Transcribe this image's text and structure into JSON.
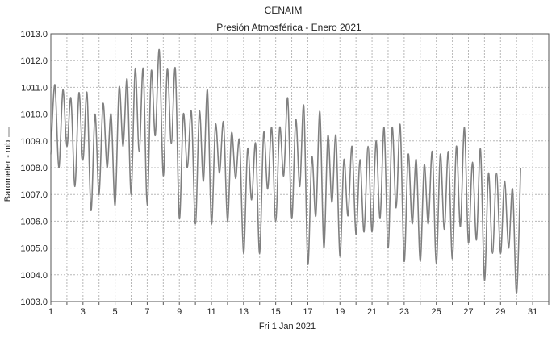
{
  "chart_data": {
    "type": "line",
    "title": "CENAIM",
    "subtitle": "Presión Atmosférica - Enero 2021",
    "xlabel": "Fri 1 Jan 2021",
    "ylabel": "Barometer - mb",
    "ylim": [
      1003.0,
      1013.0
    ],
    "xlim": [
      1,
      32
    ],
    "grid": true,
    "y_ticks": [
      "1003.0",
      "1004.0",
      "1005.0",
      "1006.0",
      "1007.0",
      "1008.0",
      "1009.0",
      "1010.0",
      "1011.0",
      "1012.0",
      "1013.0"
    ],
    "x_ticks": [
      "1",
      "3",
      "5",
      "7",
      "9",
      "11",
      "13",
      "15",
      "17",
      "19",
      "21",
      "23",
      "25",
      "27",
      "29",
      "31"
    ],
    "series": [
      {
        "color": "#808080",
        "points_per_day": 4,
        "x_start": 1,
        "values": [
          1008.5,
          1011.1,
          1008.0,
          1010.9,
          1008.8,
          1010.6,
          1007.3,
          1010.8,
          1008.3,
          1010.8,
          1006.4,
          1010.0,
          1007.0,
          1010.4,
          1008.0,
          1010.0,
          1006.6,
          1011.0,
          1008.8,
          1011.3,
          1007.0,
          1011.7,
          1008.6,
          1011.7,
          1006.6,
          1011.6,
          1009.2,
          1012.4,
          1007.7,
          1011.7,
          1008.9,
          1011.7,
          1006.1,
          1010.0,
          1008.0,
          1010.1,
          1005.9,
          1010.1,
          1007.5,
          1010.9,
          1005.9,
          1009.6,
          1007.8,
          1009.7,
          1006.0,
          1009.3,
          1007.6,
          1009.0,
          1004.8,
          1008.7,
          1006.8,
          1008.9,
          1004.8,
          1009.3,
          1007.2,
          1009.5,
          1006.0,
          1009.5,
          1007.7,
          1010.6,
          1006.1,
          1009.8,
          1007.3,
          1010.3,
          1004.4,
          1008.4,
          1006.2,
          1010.1,
          1005.0,
          1009.2,
          1006.7,
          1009.2,
          1004.7,
          1008.3,
          1006.2,
          1008.8,
          1005.5,
          1008.3,
          1005.6,
          1008.8,
          1005.6,
          1009.0,
          1006.1,
          1009.5,
          1005.0,
          1009.5,
          1006.5,
          1009.6,
          1004.5,
          1008.5,
          1005.9,
          1008.3,
          1004.5,
          1008.1,
          1005.9,
          1008.6,
          1004.4,
          1008.5,
          1005.7,
          1008.6,
          1004.6,
          1008.8,
          1005.8,
          1009.5,
          1005.2,
          1008.2,
          1005.3,
          1008.7,
          1003.8,
          1007.8,
          1004.8,
          1007.8,
          1004.8,
          1007.5,
          1005.0,
          1007.2,
          1003.3,
          1008.0
        ]
      }
    ]
  }
}
